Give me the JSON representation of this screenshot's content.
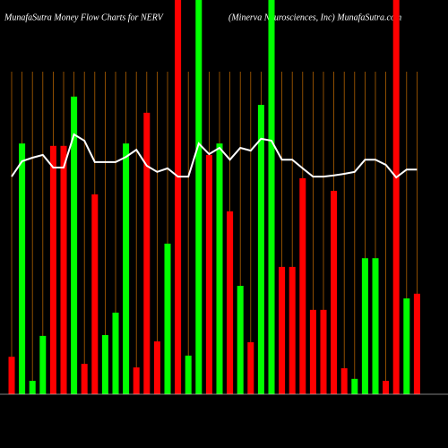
{
  "chart_data": {
    "type": "bar",
    "title": "MunafaSutra  Money Flow  Charts for NERV",
    "subtitle": "(Minerva  Neurosciences,  Inc) MunafaSutra.com",
    "categories": [
      null,
      null,
      null,
      null,
      null,
      null,
      null,
      null,
      null,
      null,
      null,
      null,
      null,
      null,
      null,
      null,
      null,
      null,
      null,
      null,
      null,
      null,
      null,
      null,
      null,
      null,
      null,
      null,
      null,
      null,
      null,
      null,
      null,
      null,
      null,
      null,
      null,
      null,
      null,
      null
    ],
    "series": [
      {
        "type": "bar",
        "bar_colors": [
          "#ff0000",
          "#00ff00",
          "#00ff00",
          "#00ff00",
          "#ff0000",
          "#ff0000",
          "#00ff00",
          "#ff0000",
          "#ff0000",
          "#00ff00",
          "#00ff00",
          "#00ff00",
          "#ff0000",
          "#ff0000",
          "#ff0000",
          "#00ff00",
          "#ff0000",
          "#00ff00",
          "#00ff00",
          "#ff0000",
          "#00ff00",
          "#ff0000",
          "#00ff00",
          "#ff0000",
          "#00ff00",
          "#00ff00",
          "#ff0000",
          "#ff0000",
          "#ff0000",
          "#ff0000",
          "#ff0000",
          "#ff0000",
          "#ff0000",
          "#00ff00",
          "#00ff00",
          "#00ff00",
          "#ff0000",
          "#ff0000",
          "#00ff00",
          "#ff0000"
        ],
        "values": [
          9.5,
          63.6,
          3.4,
          14.8,
          63,
          63,
          75.5,
          7.7,
          50.7,
          15,
          20.7,
          63.6,
          6.8,
          71.4,
          13.4,
          38.2,
          100,
          9.8,
          100,
          60.7,
          63.6,
          46.4,
          27.5,
          13.2,
          73.4,
          100,
          32.3,
          32.3,
          54.8,
          21.4,
          21.4,
          51.6,
          6.6,
          3.9,
          34.5,
          34.5,
          3.4,
          100,
          24.3,
          25.5
        ]
      },
      {
        "type": "line",
        "color": "#ffffff",
        "values": [
          55.2,
          59.1,
          60,
          60.7,
          57.5,
          57.5,
          65.9,
          64.3,
          58.9,
          58.9,
          58.9,
          60.2,
          62,
          57.95,
          56.4,
          57.3,
          55.2,
          55.2,
          63.6,
          60.9,
          62.5,
          59.5,
          62.5,
          61.8,
          64.8,
          64.3,
          59.5,
          59.5,
          57.3,
          55.2,
          55.2,
          55.5,
          55.9,
          56.4,
          59.5,
          59.5,
          58.2,
          55,
          57,
          57
        ]
      }
    ],
    "ylim": [
      0,
      100
    ]
  }
}
